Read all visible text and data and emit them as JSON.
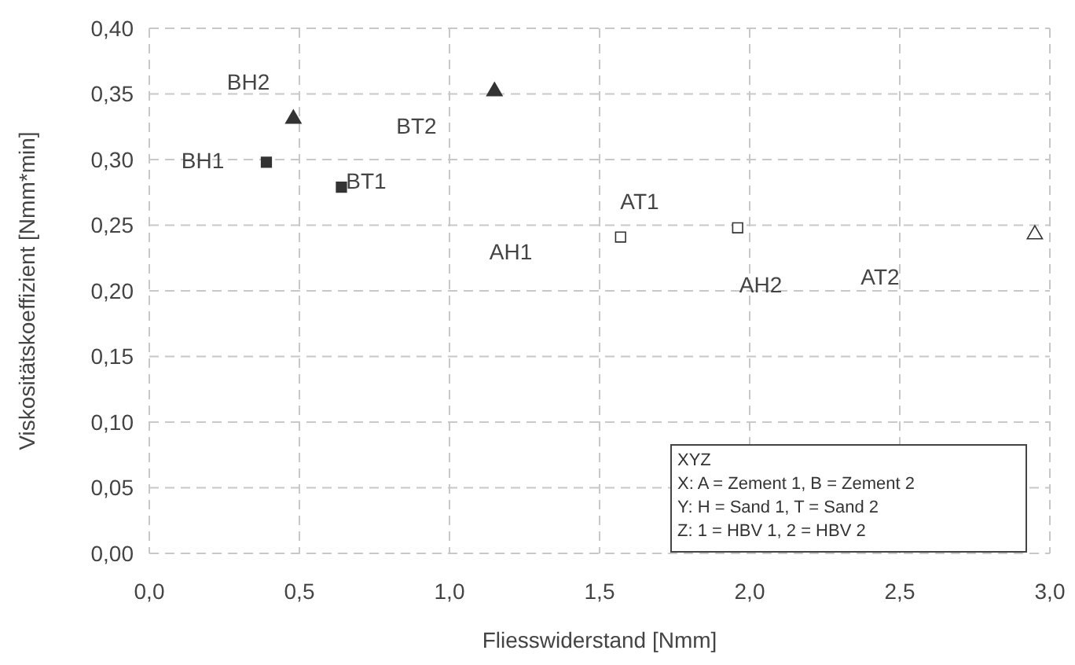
{
  "chart_data": {
    "type": "scatter",
    "xlabel": "Fliesswiderstand [Nmm]",
    "ylabel": "Viskositätskoeffizient  [Nmm*min]",
    "xlim": [
      0,
      3
    ],
    "xticks": [
      {
        "value": 0,
        "label": "0,0"
      },
      {
        "value": 0.5,
        "label": "0,5"
      },
      {
        "value": 1,
        "label": "1,0"
      },
      {
        "value": 1.5,
        "label": "1,5"
      },
      {
        "value": 2,
        "label": "2,0"
      },
      {
        "value": 2.5,
        "label": "2,5"
      },
      {
        "value": 3,
        "label": "3,0"
      }
    ],
    "ylim": [
      0,
      0.4
    ],
    "yticks": [
      {
        "value": 0,
        "label": "0,00"
      },
      {
        "value": 0.05,
        "label": "0,05"
      },
      {
        "value": 0.1,
        "label": "0,10"
      },
      {
        "value": 0.15,
        "label": "0,15"
      },
      {
        "value": 0.2,
        "label": "0,20"
      },
      {
        "value": 0.25,
        "label": "0,25"
      },
      {
        "value": 0.3,
        "label": "0,30"
      },
      {
        "value": 0.35,
        "label": "0,35"
      },
      {
        "value": 0.4,
        "label": "0,40"
      }
    ],
    "grid": true,
    "series": [
      {
        "color": "#333333",
        "marker": "square",
        "x": [
          0.39,
          0.64
        ],
        "values": [
          0.298,
          0.279
        ]
      },
      {
        "color": "#333333",
        "marker": "triangle",
        "x": [
          0.48,
          1.15
        ],
        "values": [
          0.331,
          0.352
        ]
      },
      {
        "color": "#ffffff",
        "marker": "square",
        "x": [
          1.57,
          1.96
        ],
        "values": [
          0.241,
          0.248
        ]
      },
      {
        "color": "#ffffff",
        "marker": "triangle",
        "x": [
          2.95
        ],
        "values": [
          0.243
        ]
      }
    ],
    "annotations": [
      "BH2",
      "BH1",
      "BT1",
      "BT2",
      "AH1",
      "AT1",
      "AH2",
      "AT2",
      "XYZ",
      "X: A = Zement 1, B = Zement 2",
      "Y: H = Sand 1, T = Sand 2",
      "Z: 1 = HBV 1, 2 = HBV 2"
    ]
  }
}
